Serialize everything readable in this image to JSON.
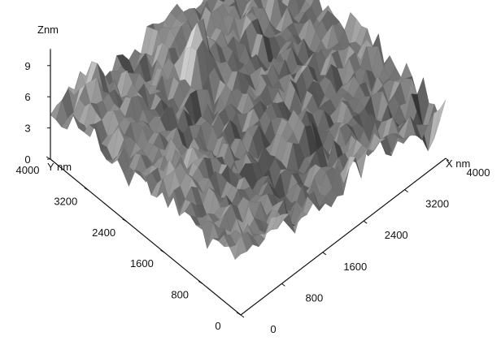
{
  "chart_data": {
    "type": "surface",
    "x_axis": {
      "label": "X nm",
      "ticks": [
        0,
        800,
        1600,
        2400,
        3200,
        4000
      ],
      "range": [
        0,
        4000
      ]
    },
    "y_axis": {
      "label": "Y nm",
      "ticks": [
        0,
        800,
        1600,
        2400,
        3200,
        4000
      ],
      "range": [
        0,
        4000
      ]
    },
    "z_axis": {
      "label": "Znm",
      "ticks": [
        0,
        3,
        6,
        9
      ],
      "range": [
        0,
        10
      ]
    },
    "grid": false,
    "colormap": "grayscale",
    "surface_colors": {
      "low": "#1a1a1a",
      "high": "#f0f0f0"
    },
    "features": [
      {
        "x": 1900,
        "y": 2900,
        "z": 9.5
      },
      {
        "x": 2200,
        "y": 1200,
        "z": 8.0
      },
      {
        "x": 500,
        "y": 3700,
        "z": 7.0
      },
      {
        "x": 3800,
        "y": 200,
        "z": 1.0
      }
    ]
  }
}
